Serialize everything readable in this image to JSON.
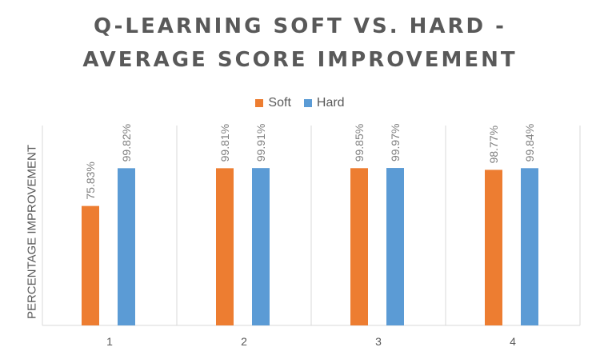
{
  "chart_data": {
    "type": "bar",
    "title_lines": [
      "Q-LEARNING SOFT VS. HARD -",
      "AVERAGE SCORE IMPROVEMENT"
    ],
    "ylabel": "PERCENTAGE IMPROVEMENT",
    "xlabel": "",
    "categories": [
      "1",
      "2",
      "3",
      "4"
    ],
    "series": [
      {
        "name": "Soft",
        "color": "#ed7d31",
        "values": [
          75.83,
          99.81,
          99.85,
          98.77
        ],
        "labels": [
          "75.83%",
          "99.81%",
          "99.85%",
          "98.77%"
        ]
      },
      {
        "name": "Hard",
        "color": "#5b9bd5",
        "values": [
          99.82,
          99.91,
          99.97,
          99.84
        ],
        "labels": [
          "99.82%",
          "99.91%",
          "99.97%",
          "99.84%"
        ]
      }
    ],
    "ylim": [
      0,
      100
    ],
    "grid": "vertical category separators",
    "legend_position": "top"
  }
}
